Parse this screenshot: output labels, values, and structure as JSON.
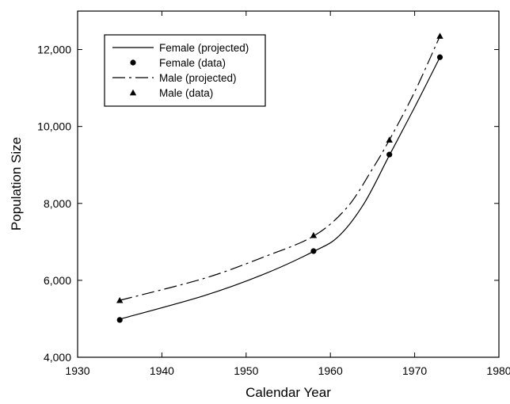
{
  "chart_data": {
    "type": "line",
    "title": "",
    "xlabel": "Calendar Year",
    "ylabel": "Population Size",
    "xlim": [
      1930,
      1980
    ],
    "ylim": [
      4000,
      13000
    ],
    "x_ticks": [
      1930,
      1940,
      1950,
      1960,
      1970,
      1980
    ],
    "x_tick_labels": [
      "1930",
      "1940",
      "1950",
      "1960",
      "1970",
      "1980"
    ],
    "y_ticks": [
      4000,
      6000,
      8000,
      10000,
      12000
    ],
    "y_tick_labels": [
      "4,000",
      "6,000",
      "8,000",
      "10,000",
      "12,000"
    ],
    "grid": false,
    "legend_position": "top-left",
    "series": [
      {
        "name": "Female (projected)",
        "kind": "line",
        "style": "solid",
        "color": "#000000",
        "x": [
          1935,
          1945,
          1952,
          1958,
          1961,
          1964,
          1967,
          1970,
          1973
        ],
        "y": [
          4990,
          5600,
          6150,
          6750,
          7150,
          8000,
          9250,
          10500,
          11800
        ]
      },
      {
        "name": "Female (data)",
        "kind": "scatter",
        "marker": "circle",
        "color": "#000000",
        "x": [
          1935,
          1958,
          1967,
          1973
        ],
        "y": [
          4970,
          6760,
          9270,
          11800
        ]
      },
      {
        "name": "Male (projected)",
        "kind": "line",
        "style": "dashdot",
        "color": "#000000",
        "x": [
          1935,
          1945,
          1952,
          1958,
          1962,
          1965,
          1967,
          1970,
          1973
        ],
        "y": [
          5480,
          6050,
          6600,
          7150,
          7900,
          8900,
          9650,
          10900,
          12350
        ]
      },
      {
        "name": "Male (data)",
        "kind": "scatter",
        "marker": "triangle",
        "color": "#000000",
        "x": [
          1935,
          1958,
          1967,
          1973
        ],
        "y": [
          5480,
          7170,
          9650,
          12350
        ]
      }
    ]
  }
}
